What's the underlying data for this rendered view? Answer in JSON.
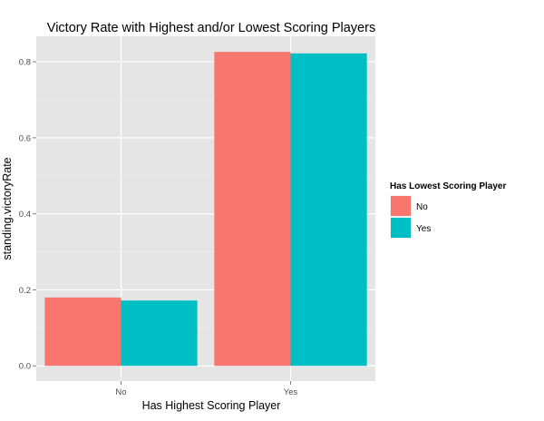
{
  "chart_data": {
    "type": "bar",
    "title": "Victory Rate with Highest and/or Lowest Scoring Players",
    "xlabel": "Has Highest Scoring Player",
    "ylabel": "standing.victoryRate",
    "categories": [
      "No",
      "Yes"
    ],
    "series": [
      {
        "name": "No",
        "values": [
          0.18,
          0.826
        ],
        "color": "#F8766D"
      },
      {
        "name": "Yes",
        "values": [
          0.172,
          0.822
        ],
        "color": "#00BFC4"
      }
    ],
    "ylim": [
      -0.04,
      0.867
    ],
    "yticks": [
      0.0,
      0.2,
      0.4,
      0.6,
      0.8
    ],
    "ytick_labels": [
      "0.0",
      "0.2",
      "0.4",
      "0.6",
      "0.8"
    ],
    "legend": {
      "title": "Has Lowest Scoring Player",
      "position": "right"
    },
    "grid": true,
    "panel_background": "#E5E5E5",
    "grid_color": "#FFFFFF"
  }
}
